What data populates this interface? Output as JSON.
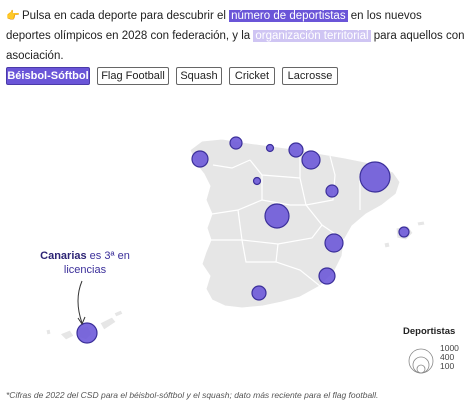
{
  "intro": {
    "icon": "pointing-hand-icon",
    "part1": "Pulsa en cada deporte para descubrir el ",
    "highlight1": "número de deportistas",
    "part2": " en los nuevos deportes olímpicos en 2028 con federación, y la ",
    "highlight2": "organización territorial",
    "part3": " para aquellos con asociación."
  },
  "sports": [
    {
      "label": "Béisbol-Sóftbol",
      "active": true
    },
    {
      "label": "Flag Football",
      "active": false
    },
    {
      "label": "Squash",
      "active": false
    },
    {
      "label": "Cricket",
      "active": false
    },
    {
      "label": "Lacrosse",
      "active": false
    }
  ],
  "callout": {
    "bold": "Canarias",
    "rest": " es 3ª en licencias"
  },
  "legend": {
    "title": "Deportistas",
    "values": [
      "1000",
      "400",
      "100"
    ]
  },
  "footnote": "*Cifras de 2022 del CSD para el béisbol-sóftbol y el squash; dato más reciente para el flag football.",
  "colors": {
    "accent": "#6a55d8",
    "highlight_light": "#cfc5f3",
    "land": "#e6e6e6",
    "border": "#ffffff"
  }
}
